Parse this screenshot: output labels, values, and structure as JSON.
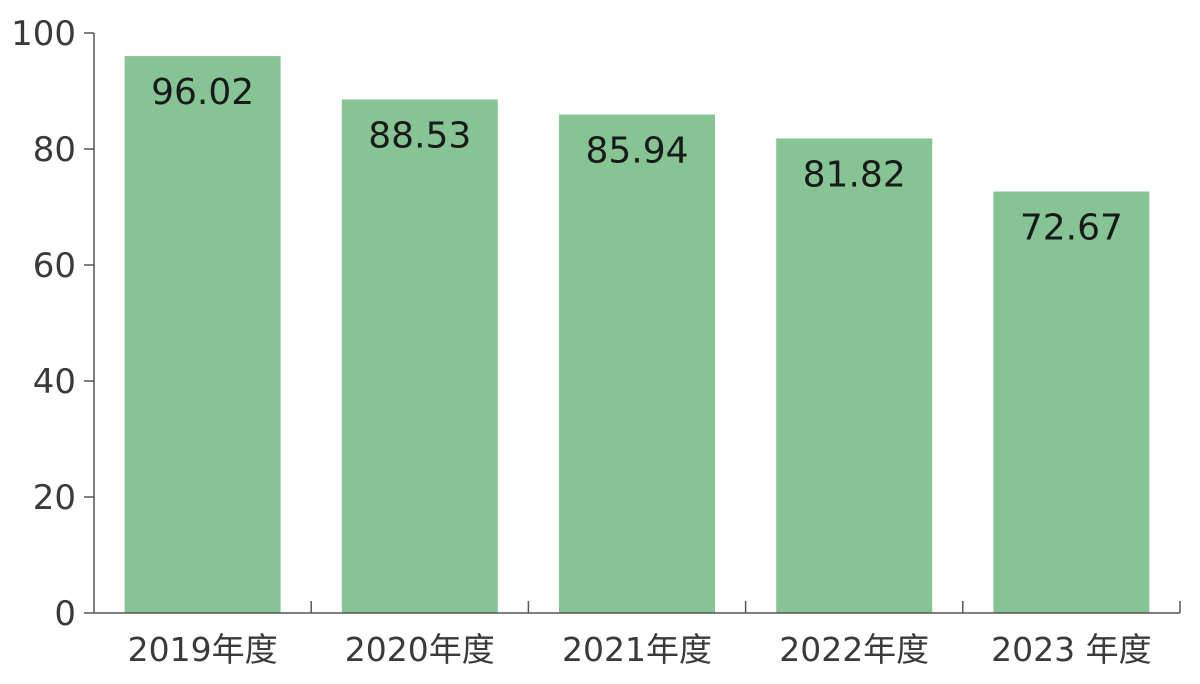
{
  "chart_data": {
    "type": "bar",
    "categories": [
      "2019年度",
      "2020年度",
      "2021年度",
      "2022年度",
      "2023 年度"
    ],
    "values": [
      96.02,
      88.53,
      85.94,
      81.82,
      72.67
    ],
    "data_labels": [
      "96.02",
      "88.53",
      "85.94",
      "81.82",
      "72.67"
    ],
    "ylim": [
      0,
      100
    ],
    "yticks": [
      "0",
      "20",
      "40",
      "60",
      "80",
      "100"
    ],
    "title": "",
    "xlabel": "",
    "ylabel": "",
    "grid": false,
    "legend": "none",
    "colors": {
      "bar": "#86c494",
      "axis": "#555555",
      "text": "#3a3a3a",
      "data_label": "#1a1a1a"
    }
  }
}
